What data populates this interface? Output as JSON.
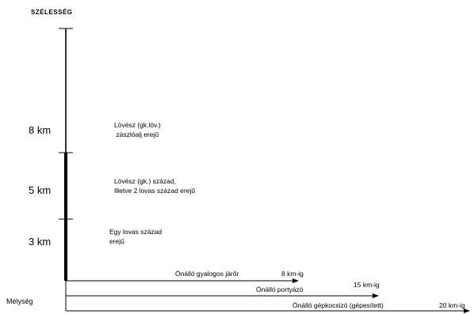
{
  "diagram": {
    "title": "SZÉLESSÉG",
    "depth_label": "Mélység",
    "width_markers": [
      {
        "label": "8 km",
        "text_lines": [
          "Lövész (gk.löv.)",
          " zászlóalj erejű"
        ]
      },
      {
        "label": "5 km",
        "text_lines": [
          "Lövész (gk.) század,",
          "Illetve 2 lovas század erejű"
        ]
      },
      {
        "label": "3 km",
        "text_lines": [
          "Egy lovas század",
          "erejű"
        ]
      }
    ],
    "depth_arrows": [
      {
        "name": "Önálló gyalogos járőr",
        "range": "8 km-ig"
      },
      {
        "name": "Önálló portyázó",
        "range": "15 km-ig"
      },
      {
        "name": "Önálló gépkocsizó (gépesített)",
        "range": "20 km-ig"
      }
    ]
  }
}
